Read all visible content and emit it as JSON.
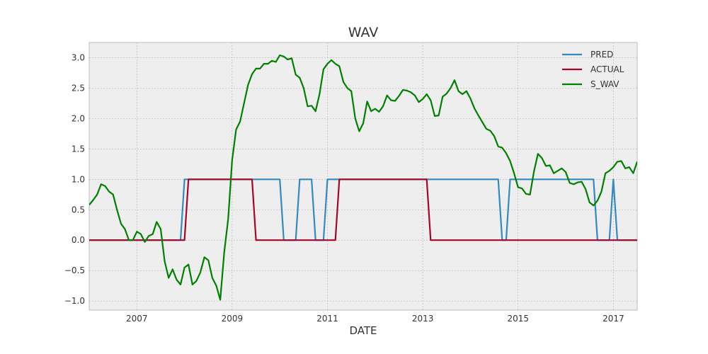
{
  "chart_data": {
    "type": "line",
    "title": "WAV",
    "xlabel": "DATE",
    "ylabel": "",
    "xlim": [
      "2006-01",
      "2017-07"
    ],
    "ylim": [
      -1.15,
      3.25
    ],
    "x_ticks": [
      "2007",
      "2009",
      "2011",
      "2013",
      "2015",
      "2017"
    ],
    "y_ticks": [
      "−1.0",
      "−0.5",
      "0.0",
      "0.5",
      "1.0",
      "1.5",
      "2.0",
      "2.5",
      "3.0"
    ],
    "grid": true,
    "legend_position": "top-right",
    "series": [
      {
        "name": "PRED",
        "color": "#348abd",
        "points": [
          [
            "2006-01",
            0
          ],
          [
            "2007-12",
            0
          ],
          [
            "2008-01",
            1
          ],
          [
            "2010-01",
            1
          ],
          [
            "2010-02",
            0
          ],
          [
            "2010-05",
            0
          ],
          [
            "2010-06",
            1
          ],
          [
            "2010-09",
            1
          ],
          [
            "2010-10",
            0
          ],
          [
            "2010-12",
            0
          ],
          [
            "2011-01",
            1
          ],
          [
            "2014-08",
            1
          ],
          [
            "2014-09",
            0
          ],
          [
            "2014-10",
            0
          ],
          [
            "2014-11",
            1
          ],
          [
            "2016-08",
            1
          ],
          [
            "2016-09",
            0
          ],
          [
            "2016-12",
            0
          ],
          [
            "2017-01",
            1
          ],
          [
            "2017-02",
            0
          ],
          [
            "2017-07",
            0
          ]
        ]
      },
      {
        "name": "ACTUAL",
        "color": "#a60628",
        "points": [
          [
            "2006-01",
            0
          ],
          [
            "2008-01",
            0
          ],
          [
            "2008-02",
            1
          ],
          [
            "2009-06",
            1
          ],
          [
            "2009-07",
            0
          ],
          [
            "2011-03",
            0
          ],
          [
            "2011-04",
            1
          ],
          [
            "2013-02",
            1
          ],
          [
            "2013-03",
            0
          ],
          [
            "2017-07",
            0
          ]
        ]
      },
      {
        "name": "S_WAV",
        "color": "#008000",
        "points": [
          [
            "2006-01",
            0.58
          ],
          [
            "2006-02",
            0.66
          ],
          [
            "2006-03",
            0.75
          ],
          [
            "2006-04",
            0.92
          ],
          [
            "2006-05",
            0.89
          ],
          [
            "2006-06",
            0.8
          ],
          [
            "2006-07",
            0.75
          ],
          [
            "2006-08",
            0.5
          ],
          [
            "2006-09",
            0.27
          ],
          [
            "2006-10",
            0.18
          ],
          [
            "2006-11",
            0.0
          ],
          [
            "2006-12",
            0.0
          ],
          [
            "2007-01",
            0.14
          ],
          [
            "2007-02",
            0.1
          ],
          [
            "2007-03",
            -0.03
          ],
          [
            "2007-04",
            0.07
          ],
          [
            "2007-05",
            0.1
          ],
          [
            "2007-06",
            0.3
          ],
          [
            "2007-07",
            0.18
          ],
          [
            "2007-08",
            -0.35
          ],
          [
            "2007-09",
            -0.62
          ],
          [
            "2007-10",
            -0.48
          ],
          [
            "2007-11",
            -0.65
          ],
          [
            "2007-12",
            -0.73
          ],
          [
            "2008-01",
            -0.45
          ],
          [
            "2008-02",
            -0.4
          ],
          [
            "2008-03",
            -0.73
          ],
          [
            "2008-04",
            -0.67
          ],
          [
            "2008-05",
            -0.53
          ],
          [
            "2008-06",
            -0.28
          ],
          [
            "2008-07",
            -0.33
          ],
          [
            "2008-08",
            -0.62
          ],
          [
            "2008-09",
            -0.75
          ],
          [
            "2008-10",
            -0.98
          ],
          [
            "2008-11",
            -0.2
          ],
          [
            "2008-12",
            0.35
          ],
          [
            "2009-01",
            1.32
          ],
          [
            "2009-02",
            1.82
          ],
          [
            "2009-03",
            1.95
          ],
          [
            "2009-04",
            2.25
          ],
          [
            "2009-05",
            2.55
          ],
          [
            "2009-06",
            2.73
          ],
          [
            "2009-07",
            2.82
          ],
          [
            "2009-08",
            2.82
          ],
          [
            "2009-09",
            2.9
          ],
          [
            "2009-10",
            2.9
          ],
          [
            "2009-11",
            2.95
          ],
          [
            "2009-12",
            2.93
          ],
          [
            "2010-01",
            3.04
          ],
          [
            "2010-02",
            3.02
          ],
          [
            "2010-03",
            2.97
          ],
          [
            "2010-04",
            2.99
          ],
          [
            "2010-05",
            2.72
          ],
          [
            "2010-06",
            2.67
          ],
          [
            "2010-07",
            2.5
          ],
          [
            "2010-08",
            2.2
          ],
          [
            "2010-09",
            2.21
          ],
          [
            "2010-10",
            2.12
          ],
          [
            "2010-11",
            2.4
          ],
          [
            "2010-12",
            2.81
          ],
          [
            "2011-01",
            2.9
          ],
          [
            "2011-02",
            2.96
          ],
          [
            "2011-03",
            2.9
          ],
          [
            "2011-04",
            2.86
          ],
          [
            "2011-05",
            2.6
          ],
          [
            "2011-06",
            2.5
          ],
          [
            "2011-07",
            2.45
          ],
          [
            "2011-08",
            2.0
          ],
          [
            "2011-09",
            1.79
          ],
          [
            "2011-10",
            1.92
          ],
          [
            "2011-11",
            2.28
          ],
          [
            "2011-12",
            2.12
          ],
          [
            "2012-01",
            2.16
          ],
          [
            "2012-02",
            2.11
          ],
          [
            "2012-03",
            2.2
          ],
          [
            "2012-04",
            2.38
          ],
          [
            "2012-05",
            2.3
          ],
          [
            "2012-06",
            2.29
          ],
          [
            "2012-07",
            2.37
          ],
          [
            "2012-08",
            2.47
          ],
          [
            "2012-09",
            2.46
          ],
          [
            "2012-10",
            2.43
          ],
          [
            "2012-11",
            2.38
          ],
          [
            "2012-12",
            2.27
          ],
          [
            "2013-01",
            2.32
          ],
          [
            "2013-02",
            2.4
          ],
          [
            "2013-03",
            2.3
          ],
          [
            "2013-04",
            2.04
          ],
          [
            "2013-05",
            2.05
          ],
          [
            "2013-06",
            2.36
          ],
          [
            "2013-07",
            2.41
          ],
          [
            "2013-08",
            2.5
          ],
          [
            "2013-09",
            2.63
          ],
          [
            "2013-10",
            2.45
          ],
          [
            "2013-11",
            2.4
          ],
          [
            "2013-12",
            2.45
          ],
          [
            "2014-01",
            2.33
          ],
          [
            "2014-02",
            2.17
          ],
          [
            "2014-03",
            2.05
          ],
          [
            "2014-04",
            1.94
          ],
          [
            "2014-05",
            1.83
          ],
          [
            "2014-06",
            1.8
          ],
          [
            "2014-07",
            1.71
          ],
          [
            "2014-08",
            1.54
          ],
          [
            "2014-09",
            1.52
          ],
          [
            "2014-10",
            1.43
          ],
          [
            "2014-11",
            1.3
          ],
          [
            "2014-12",
            1.1
          ],
          [
            "2015-01",
            0.87
          ],
          [
            "2015-02",
            0.85
          ],
          [
            "2015-03",
            0.76
          ],
          [
            "2015-04",
            0.75
          ],
          [
            "2015-05",
            1.13
          ],
          [
            "2015-06",
            1.42
          ],
          [
            "2015-07",
            1.35
          ],
          [
            "2015-08",
            1.22
          ],
          [
            "2015-09",
            1.23
          ],
          [
            "2015-10",
            1.1
          ],
          [
            "2015-11",
            1.14
          ],
          [
            "2015-12",
            1.18
          ],
          [
            "2016-01",
            1.12
          ],
          [
            "2016-02",
            0.94
          ],
          [
            "2016-03",
            0.92
          ],
          [
            "2016-04",
            0.95
          ],
          [
            "2016-05",
            0.96
          ],
          [
            "2016-06",
            0.84
          ],
          [
            "2016-07",
            0.62
          ],
          [
            "2016-08",
            0.57
          ],
          [
            "2016-09",
            0.65
          ],
          [
            "2016-10",
            0.8
          ],
          [
            "2016-11",
            1.1
          ],
          [
            "2016-12",
            1.14
          ],
          [
            "2017-01",
            1.2
          ],
          [
            "2017-02",
            1.29
          ],
          [
            "2017-03",
            1.3
          ],
          [
            "2017-04",
            1.18
          ],
          [
            "2017-05",
            1.2
          ],
          [
            "2017-06",
            1.1
          ],
          [
            "2017-07",
            1.29
          ]
        ]
      }
    ]
  }
}
